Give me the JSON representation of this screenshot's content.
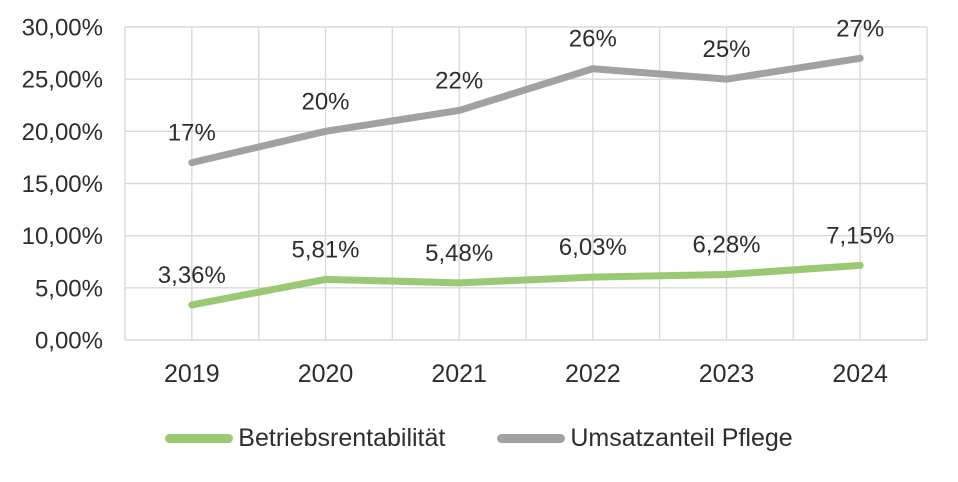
{
  "chart_data": {
    "type": "line",
    "x": [
      "2019",
      "2020",
      "2021",
      "2022",
      "2023",
      "2024"
    ],
    "series": [
      {
        "name": "Betriebsrentabilität",
        "values": [
          3.36,
          5.81,
          5.48,
          6.03,
          6.28,
          7.15
        ],
        "labels": [
          "3,36%",
          "5,81%",
          "5,48%",
          "6,03%",
          "6,28%",
          "7,15%"
        ],
        "color": "#9AC873"
      },
      {
        "name": "Umsatzanteil Pflege",
        "values": [
          17,
          20,
          22,
          26,
          25,
          27
        ],
        "labels": [
          "17%",
          "20%",
          "22%",
          "26%",
          "25%",
          "27%"
        ],
        "color": "#A1A1A1"
      }
    ],
    "title": "",
    "xlabel": "",
    "ylabel": "",
    "ylim": [
      0,
      30
    ],
    "ytick_step": 5,
    "ytick_labels": [
      "0,00%",
      "5,00%",
      "10,00%",
      "15,00%",
      "20,00%",
      "25,00%",
      "30,00%"
    ],
    "grid": true,
    "legend_position": "bottom"
  },
  "colors": {
    "grid": "#D9D9D9",
    "text": "#2d2d2d",
    "background": "#FFFFFF"
  }
}
